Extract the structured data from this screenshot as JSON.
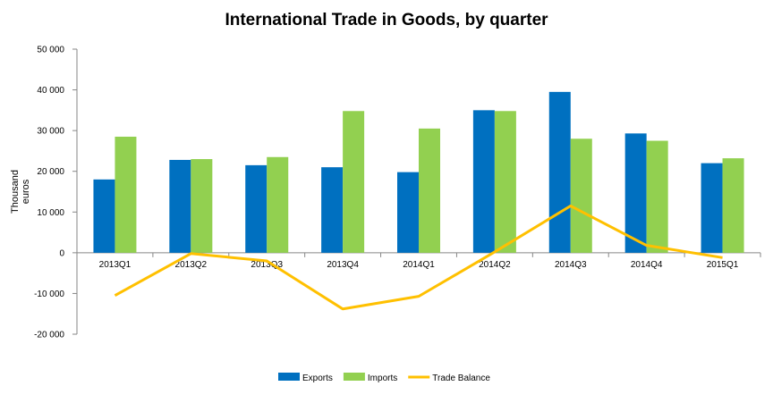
{
  "chart_data": {
    "type": "bar",
    "title": "International Trade in Goods, by quarter",
    "xlabel": "",
    "ylabel": "Thousand euros",
    "ylabel_lines": [
      "Thousand",
      "euros"
    ],
    "categories": [
      "2013Q1",
      "2013Q2",
      "2013Q3",
      "2013Q4",
      "2014Q1",
      "2014Q2",
      "2014Q3",
      "2014Q4",
      "2015Q1"
    ],
    "series": [
      {
        "name": "Exports",
        "type": "bar",
        "color": "#0070C0",
        "values": [
          18000,
          22800,
          21500,
          21000,
          19800,
          35000,
          39500,
          29300,
          22000
        ]
      },
      {
        "name": "Imports",
        "type": "bar",
        "color": "#92D050",
        "values": [
          28500,
          23000,
          23500,
          34800,
          30500,
          34800,
          28000,
          27500,
          23200
        ]
      },
      {
        "name": "Trade Balance",
        "type": "line",
        "color": "#FFC000",
        "values": [
          -10500,
          -200,
          -2000,
          -13800,
          -10700,
          200,
          11500,
          1800,
          -1200
        ]
      }
    ],
    "ylim": [
      -20000,
      50000
    ],
    "yticks": [
      -20000,
      -10000,
      0,
      10000,
      20000,
      30000,
      40000,
      50000
    ],
    "ytick_labels": [
      "-20 000",
      "-10 000",
      "0",
      "10 000",
      "20 000",
      "30 000",
      "40 000",
      "50 000"
    ],
    "grid": false,
    "legend": "bottom"
  }
}
